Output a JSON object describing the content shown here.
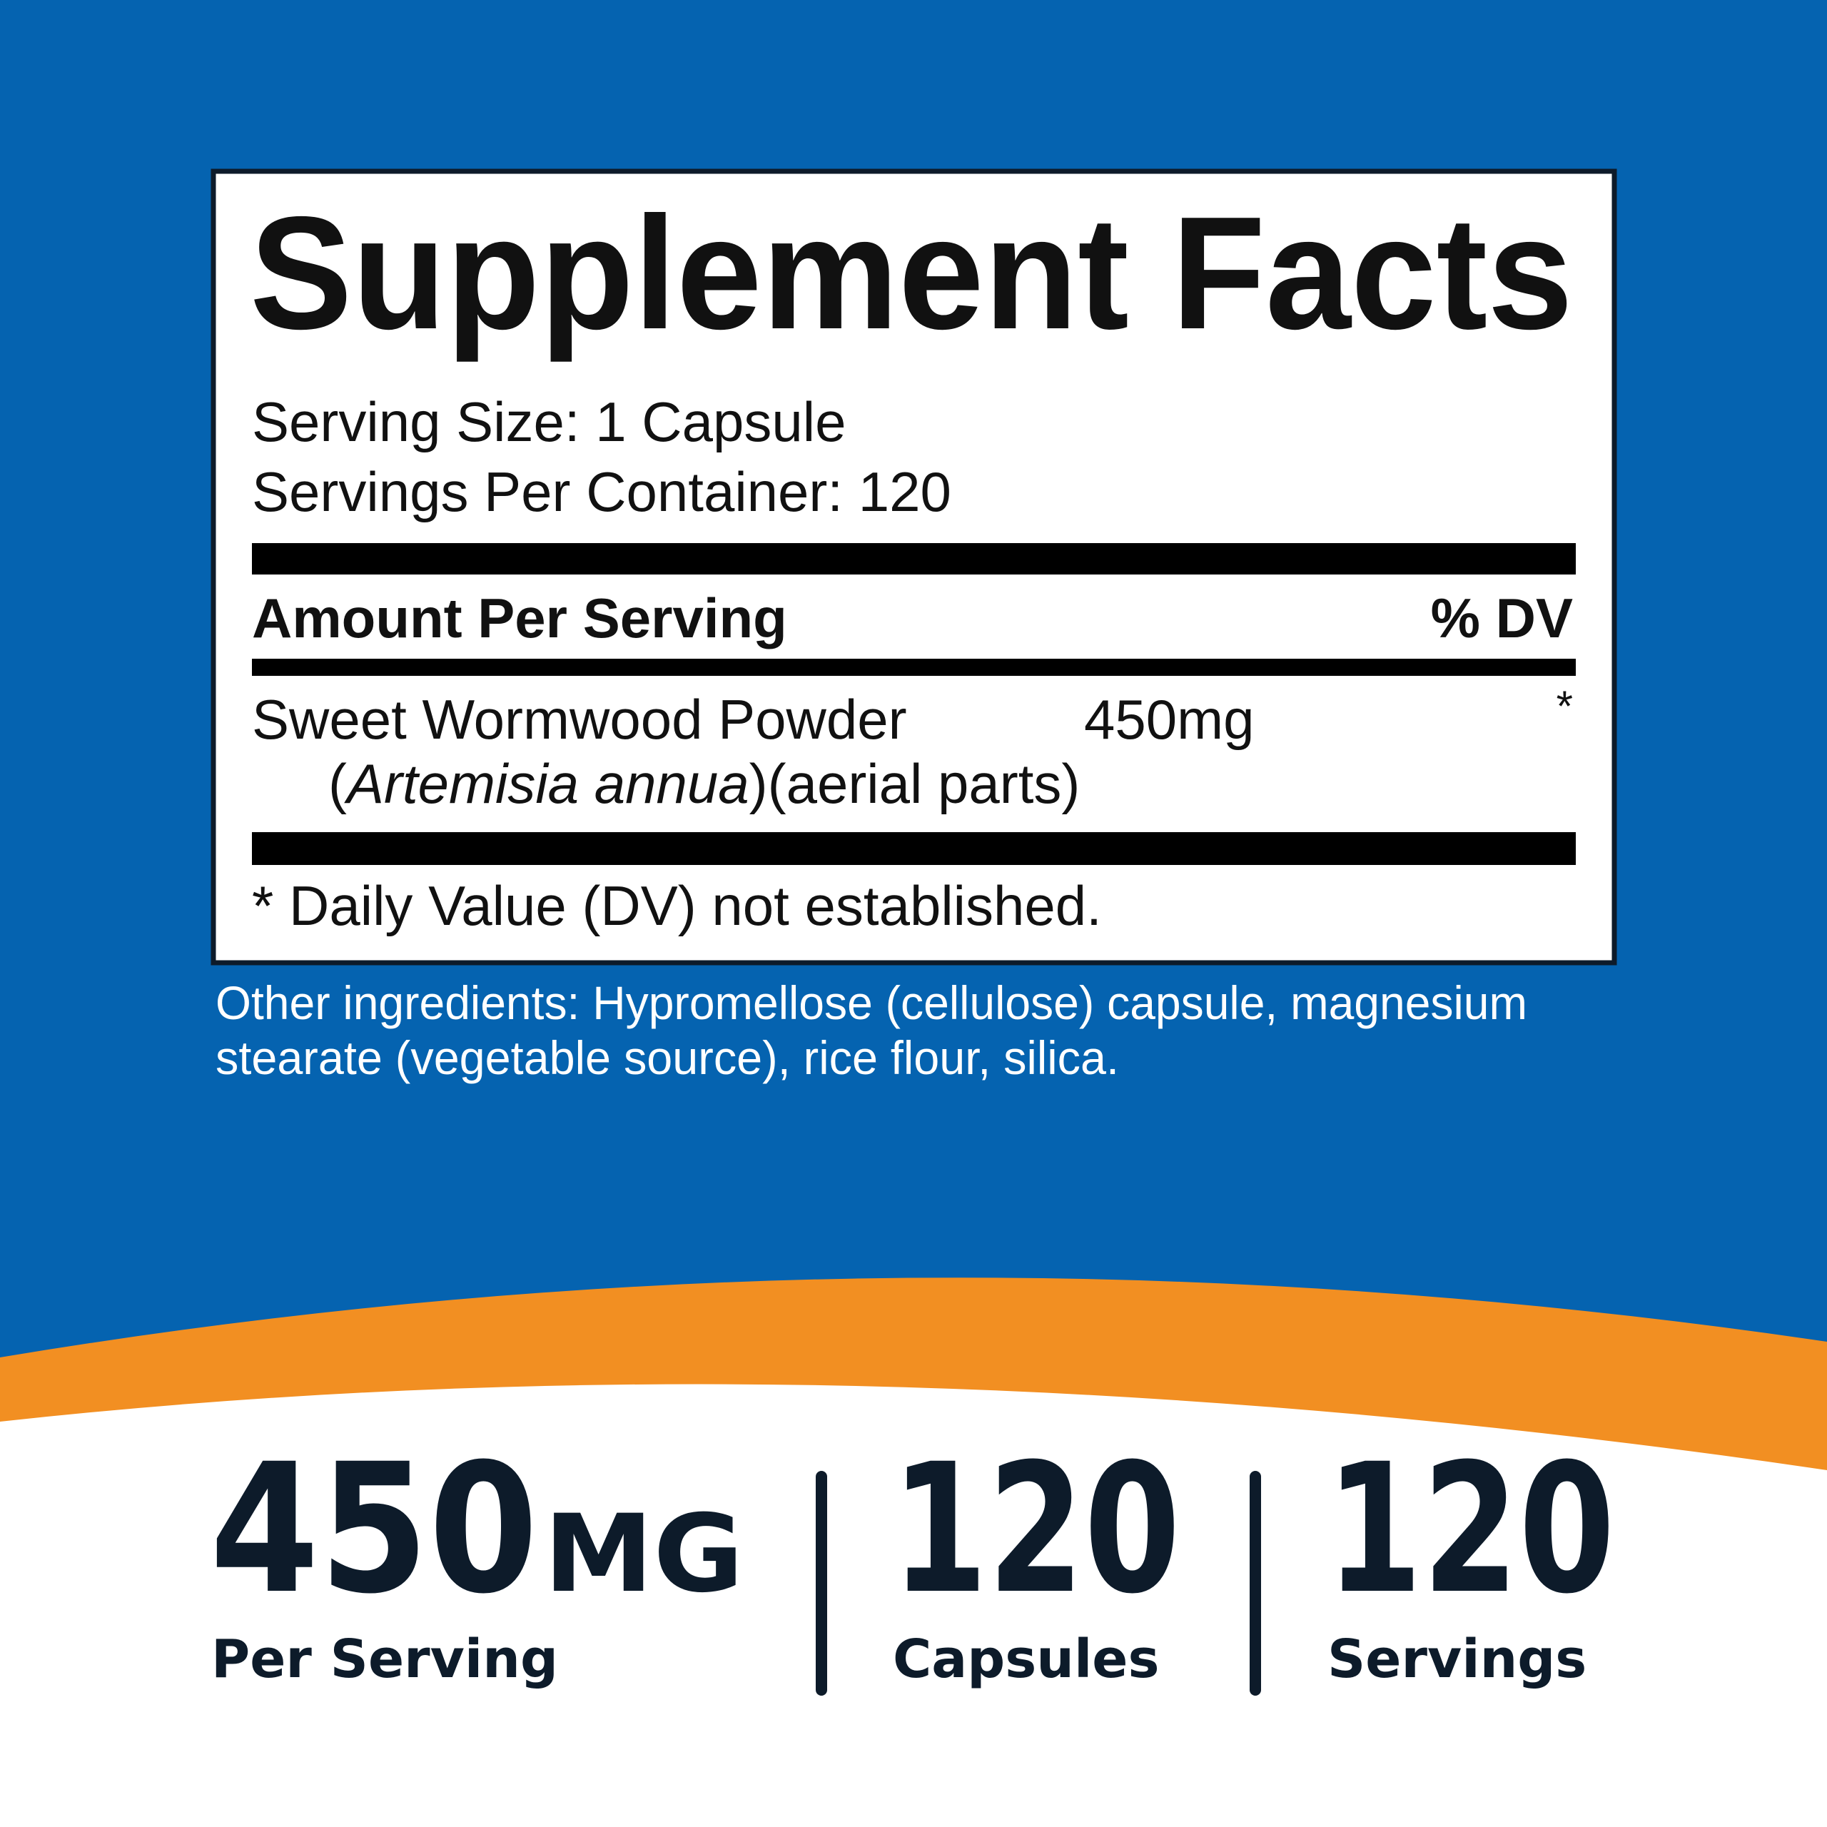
{
  "label": {
    "title": "Supplement Facts",
    "serving_size": "Serving Size: 1 Capsule",
    "servings_per_container": "Servings Per Container: 120",
    "header": {
      "amount": "Amount Per Serving",
      "dv": "% DV"
    },
    "ingredient": {
      "name": "Sweet Wormwood Powder",
      "open": "(",
      "latin": "Artemisia annua",
      "close": ")(aerial parts)",
      "amount": "450mg",
      "dv": "*"
    },
    "footnote": "* Daily Value (DV) not established."
  },
  "other_ingredients": [
    "Other ingredients: Hypromellose (cellulose) capsule, magnesium",
    "stearate (vegetable source), rice flour, silica."
  ],
  "stats": [
    {
      "value": "450",
      "unit": "MG",
      "label": "Per Serving"
    },
    {
      "value": "120",
      "label": "Capsules"
    },
    {
      "value": "120",
      "label": "Servings"
    }
  ]
}
